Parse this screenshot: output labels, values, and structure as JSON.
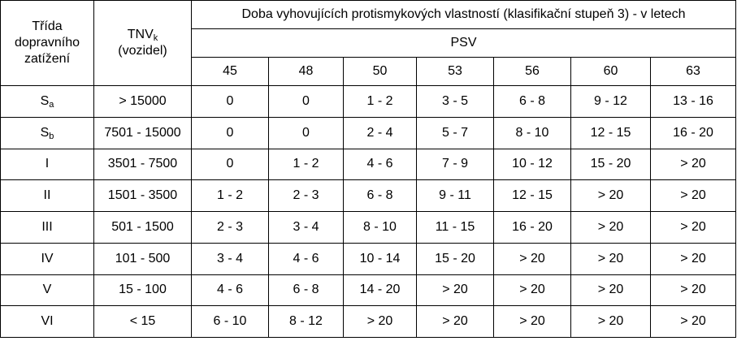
{
  "header": {
    "class_col": [
      "Třída",
      "dopravního",
      "zatížení"
    ],
    "tnv_main": "TNV",
    "tnv_sub": "k",
    "tnv_unit": "(vozidel)",
    "span_title": "Doba vyhovujících protismykových vlastností (klasifikační stupeň 3) - v letech",
    "psv_label": "PSV",
    "psv_values": [
      "45",
      "48",
      "50",
      "53",
      "56",
      "60",
      "63"
    ]
  },
  "rows": [
    {
      "cls": "S",
      "cls_sub": "a",
      "tnv": "> 15000",
      "vals": [
        "0",
        "0",
        "1 - 2",
        "3 - 5",
        "6 - 8",
        "9 - 12",
        "13 - 16"
      ]
    },
    {
      "cls": "S",
      "cls_sub": "b",
      "tnv": "7501 - 15000",
      "vals": [
        "0",
        "0",
        "2 - 4",
        "5 - 7",
        "8 - 10",
        "12 - 15",
        "16 - 20"
      ]
    },
    {
      "cls": "I",
      "cls_sub": "",
      "tnv": "3501 - 7500",
      "vals": [
        "0",
        "1 - 2",
        "4 - 6",
        "7 - 9",
        "10 - 12",
        "15 - 20",
        "> 20"
      ]
    },
    {
      "cls": "II",
      "cls_sub": "",
      "tnv": "1501 - 3500",
      "vals": [
        "1 - 2",
        "2 - 3",
        "6 - 8",
        "9 - 11",
        "12 - 15",
        "> 20",
        "> 20"
      ]
    },
    {
      "cls": "III",
      "cls_sub": "",
      "tnv": "501 - 1500",
      "vals": [
        "2 - 3",
        "3 - 4",
        "8 - 10",
        "11 - 15",
        "16 - 20",
        "> 20",
        "> 20"
      ]
    },
    {
      "cls": "IV",
      "cls_sub": "",
      "tnv": "101 - 500",
      "vals": [
        "3 - 4",
        "4 - 6",
        "10 - 14",
        "15 - 20",
        "> 20",
        "> 20",
        "> 20"
      ]
    },
    {
      "cls": "V",
      "cls_sub": "",
      "tnv": "15 - 100",
      "vals": [
        "4 - 6",
        "6 - 8",
        "14 - 20",
        "> 20",
        "> 20",
        "> 20",
        "> 20"
      ]
    },
    {
      "cls": "VI",
      "cls_sub": "",
      "tnv": "< 15",
      "vals": [
        "6 - 10",
        "8 - 12",
        "> 20",
        "> 20",
        "> 20",
        "> 20",
        "> 20"
      ]
    }
  ]
}
